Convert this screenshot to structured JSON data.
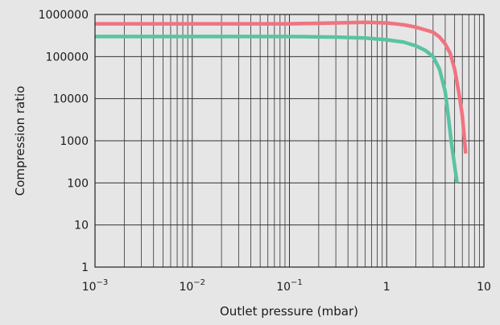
{
  "chart_data": {
    "type": "line",
    "title": "",
    "xlabel": "Outlet pressure (mbar)",
    "ylabel": "Compression ratio",
    "x_scale": "log",
    "y_scale": "log",
    "xlim": [
      0.001,
      10
    ],
    "ylim": [
      1,
      1000000
    ],
    "grid": true,
    "x_ticks": [
      {
        "base": "10",
        "exp": "−3"
      },
      {
        "base": "10",
        "exp": "−2"
      },
      {
        "base": "10",
        "exp": "−1"
      },
      {
        "base": "1",
        "exp": ""
      },
      {
        "base": "10",
        "exp": ""
      }
    ],
    "y_ticks": [
      "1",
      "10",
      "100",
      "1000",
      "10000",
      "100000",
      "1000000"
    ],
    "series": [
      {
        "color": "#f07480",
        "points": [
          [
            0.001,
            600000
          ],
          [
            0.01,
            600000
          ],
          [
            0.1,
            600000
          ],
          [
            0.3,
            630000
          ],
          [
            0.6,
            650000
          ],
          [
            1.0,
            630000
          ],
          [
            1.5,
            570000
          ],
          [
            2.0,
            500000
          ],
          [
            3.0,
            380000
          ],
          [
            3.5,
            290000
          ],
          [
            4.0,
            200000
          ],
          [
            4.5,
            120000
          ],
          [
            5.0,
            50000
          ],
          [
            5.5,
            15000
          ],
          [
            6.0,
            4000
          ],
          [
            6.5,
            500
          ]
        ]
      },
      {
        "color": "#5ac3a2",
        "points": [
          [
            0.001,
            300000
          ],
          [
            0.01,
            300000
          ],
          [
            0.1,
            300000
          ],
          [
            0.3,
            290000
          ],
          [
            0.6,
            275000
          ],
          [
            1.0,
            250000
          ],
          [
            1.5,
            220000
          ],
          [
            2.0,
            180000
          ],
          [
            2.5,
            140000
          ],
          [
            3.0,
            100000
          ],
          [
            3.5,
            50000
          ],
          [
            4.0,
            15000
          ],
          [
            4.3,
            4000
          ],
          [
            4.6,
            1000
          ],
          [
            5.0,
            250
          ],
          [
            5.3,
            100
          ]
        ]
      }
    ]
  }
}
